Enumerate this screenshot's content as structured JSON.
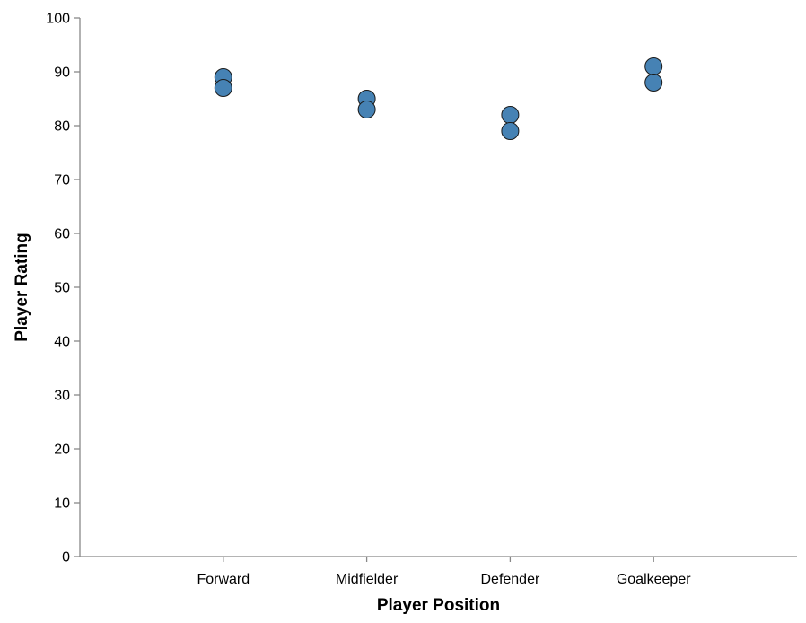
{
  "chart_data": {
    "type": "scatter",
    "title": "",
    "xlabel": "Player Position",
    "ylabel": "Player Rating",
    "categories": [
      "Forward",
      "Midfielder",
      "Defender",
      "Goalkeeper"
    ],
    "ylim": [
      0,
      100
    ],
    "yticks": [
      0,
      10,
      20,
      30,
      40,
      50,
      60,
      70,
      80,
      90,
      100
    ],
    "grid": false,
    "point_color": "#4682b4",
    "points": [
      {
        "x": "Forward",
        "y": 89
      },
      {
        "x": "Forward",
        "y": 87
      },
      {
        "x": "Midfielder",
        "y": 85
      },
      {
        "x": "Midfielder",
        "y": 83
      },
      {
        "x": "Defender",
        "y": 82
      },
      {
        "x": "Defender",
        "y": 79
      },
      {
        "x": "Goalkeeper",
        "y": 91
      },
      {
        "x": "Goalkeeper",
        "y": 88
      }
    ]
  }
}
